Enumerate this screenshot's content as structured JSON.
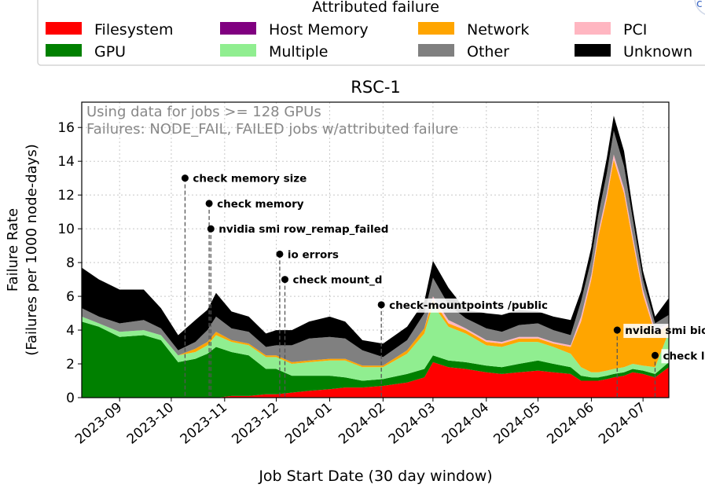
{
  "chart_data": {
    "type": "area",
    "title": "RSC-1",
    "xlabel": "Job Start Date (30 day window)",
    "ylabel_lines": [
      "Failure Rate",
      "(Failures per 1000 node-days)"
    ],
    "legend_title": "Attributed failure",
    "note_lines": [
      "Using data for jobs >= 128 GPUs",
      "Failures: NODE_FAIL, FAILED jobs w/attributed failure"
    ],
    "ylim": [
      0,
      17.5
    ],
    "xlim": [
      "2023-08-10",
      "2024-07-16"
    ],
    "y_ticks": [
      0,
      2,
      4,
      6,
      8,
      10,
      12,
      14,
      16
    ],
    "x_ticks": [
      {
        "date": "2023-09-01",
        "label": "2023-09"
      },
      {
        "date": "2023-10-01",
        "label": "2023-10"
      },
      {
        "date": "2023-11-01",
        "label": "2023-11"
      },
      {
        "date": "2023-12-01",
        "label": "2023-12"
      },
      {
        "date": "2024-01-01",
        "label": "2024-01"
      },
      {
        "date": "2024-02-01",
        "label": "2024-02"
      },
      {
        "date": "2024-03-01",
        "label": "2024-03"
      },
      {
        "date": "2024-04-01",
        "label": "2024-04"
      },
      {
        "date": "2024-05-01",
        "label": "2024-05"
      },
      {
        "date": "2024-06-01",
        "label": "2024-06"
      },
      {
        "date": "2024-07-01",
        "label": "2024-07"
      }
    ],
    "grid": true,
    "legend_placement": "top",
    "stacked": true,
    "x": [
      "2023-08-10",
      "2023-08-20",
      "2023-09-01",
      "2023-09-15",
      "2023-09-25",
      "2023-10-05",
      "2023-10-15",
      "2023-10-22",
      "2023-10-27",
      "2023-11-05",
      "2023-11-15",
      "2023-11-25",
      "2023-12-01",
      "2023-12-10",
      "2023-12-20",
      "2024-01-01",
      "2024-01-10",
      "2024-01-20",
      "2024-02-01",
      "2024-02-15",
      "2024-02-25",
      "2024-03-01",
      "2024-03-10",
      "2024-03-20",
      "2024-04-01",
      "2024-04-10",
      "2024-04-20",
      "2024-05-01",
      "2024-05-10",
      "2024-05-20",
      "2024-05-26",
      "2024-06-01",
      "2024-06-05",
      "2024-06-10",
      "2024-06-14",
      "2024-06-20",
      "2024-06-25",
      "2024-07-01",
      "2024-07-08",
      "2024-07-16"
    ],
    "series": [
      {
        "name": "Filesystem",
        "color": "#ff0000",
        "values": [
          0,
          0,
          0,
          0,
          0,
          0,
          0,
          0,
          0,
          0.1,
          0.1,
          0.2,
          0.2,
          0.3,
          0.4,
          0.5,
          0.6,
          0.6,
          0.7,
          0.9,
          1.2,
          2.1,
          1.8,
          1.7,
          1.5,
          1.4,
          1.5,
          1.6,
          1.5,
          1.4,
          1.0,
          1.0,
          1.0,
          1.1,
          1.2,
          1.3,
          1.5,
          1.4,
          1.2,
          1.8
        ]
      },
      {
        "name": "GPU",
        "color": "#008000",
        "values": [
          4.5,
          4.2,
          3.6,
          3.7,
          3.4,
          2.1,
          2.3,
          2.6,
          3.0,
          2.6,
          2.4,
          1.5,
          1.5,
          1.0,
          0.9,
          0.8,
          0.6,
          0.4,
          0.4,
          0.5,
          0.5,
          0.4,
          0.4,
          0.4,
          0.4,
          0.4,
          0.5,
          0.6,
          0.5,
          0.4,
          0.3,
          0.2,
          0.2,
          0.2,
          0.2,
          0.2,
          0.2,
          0.2,
          0.2,
          0.3
        ]
      },
      {
        "name": "Host Memory",
        "color": "#800080",
        "values": [
          0,
          0,
          0,
          0,
          0,
          0,
          0,
          0,
          0,
          0,
          0,
          0,
          0,
          0,
          0,
          0,
          0,
          0,
          0,
          0,
          0,
          0,
          0,
          0,
          0,
          0,
          0,
          0,
          0,
          0,
          0,
          0,
          0,
          0,
          0,
          0,
          0,
          0,
          0,
          0
        ]
      },
      {
        "name": "Multiple",
        "color": "#90ee90",
        "values": [
          0.3,
          0.2,
          0.3,
          0.3,
          0.3,
          0.4,
          0.4,
          0.5,
          0.7,
          0.6,
          0.6,
          0.7,
          0.7,
          0.7,
          0.8,
          0.9,
          1.0,
          0.8,
          0.7,
          1.2,
          2.1,
          3.0,
          2.0,
          1.7,
          1.2,
          1.2,
          1.3,
          1.1,
          1.0,
          0.8,
          0.5,
          0.3,
          0.3,
          0.3,
          0.3,
          0.3,
          0.3,
          0.3,
          0.4,
          1.8
        ]
      },
      {
        "name": "Network",
        "color": "#ffa500",
        "values": [
          0,
          0,
          0,
          0,
          0,
          0,
          0.2,
          0.2,
          0.2,
          0.1,
          0.1,
          0.1,
          0.1,
          0.1,
          0.1,
          0.1,
          0.1,
          0.1,
          0.1,
          0.2,
          0.3,
          0.3,
          0.2,
          0.2,
          0.2,
          0.2,
          0.2,
          0.2,
          0.2,
          0.4,
          2.7,
          5.5,
          8.0,
          10.2,
          12.4,
          10.3,
          7.3,
          4.2,
          2.0,
          0.4
        ]
      },
      {
        "name": "PCI",
        "color": "#ffb6c1",
        "values": [
          0,
          0,
          0,
          0,
          0,
          0,
          0,
          0,
          0,
          0,
          0,
          0,
          0,
          0,
          0,
          0,
          0,
          0,
          0,
          0,
          0,
          0.2,
          0.2,
          0.1,
          0.1,
          0.1,
          0.1,
          0.1,
          0.1,
          0.1,
          0.3,
          0.3,
          0.3,
          0.3,
          0.3,
          0.3,
          0.3,
          0.3,
          0.2,
          0.1
        ]
      },
      {
        "name": "Other",
        "color": "#808080",
        "values": [
          0.5,
          0.4,
          0.5,
          0.6,
          0.4,
          0.3,
          0.4,
          0.7,
          0.9,
          0.7,
          0.7,
          0.5,
          0.6,
          1.0,
          1.3,
          1.3,
          1.2,
          0.9,
          0.5,
          0.6,
          0.9,
          1.1,
          0.9,
          0.6,
          0.7,
          0.6,
          0.7,
          0.8,
          0.7,
          0.6,
          0.9,
          0.9,
          1.0,
          1.2,
          1.4,
          1.3,
          1.0,
          0.6,
          0.4,
          0.5
        ]
      },
      {
        "name": "Unknown",
        "color": "#000000",
        "values": [
          2.4,
          2.2,
          2.0,
          1.8,
          1.2,
          0.9,
          1.3,
          1.2,
          1.4,
          1.0,
          0.9,
          0.8,
          0.9,
          0.9,
          1.0,
          1.2,
          1.0,
          0.6,
          0.8,
          0.8,
          0.7,
          1.0,
          1.0,
          0.5,
          0.9,
          1.0,
          0.9,
          0.7,
          0.8,
          0.9,
          0.6,
          0.7,
          0.8,
          0.9,
          0.9,
          0.9,
          0.6,
          0.5,
          0.4,
          1.0
        ]
      }
    ],
    "annotations": [
      {
        "label": "check memory size",
        "date": "2023-10-09",
        "y": 13.0
      },
      {
        "label": "check memory",
        "date": "2023-10-23",
        "y": 11.5
      },
      {
        "label": "nvidia smi row_remap_failed",
        "date": "2023-10-24",
        "y": 10.0
      },
      {
        "label": "io errors",
        "date": "2023-12-03",
        "y": 8.5
      },
      {
        "label": "check mount_d",
        "date": "2023-12-06",
        "y": 7.0
      },
      {
        "label": "check-mountpoints /public",
        "date": "2024-01-31",
        "y": 5.5
      },
      {
        "label": "nvidia smi bios version mismatch",
        "date": "2024-06-16",
        "y": 4.0
      },
      {
        "label": "check ldap",
        "date": "2024-07-08",
        "y": 2.5
      }
    ]
  },
  "legend": {
    "items": [
      {
        "name": "Filesystem",
        "color": "#ff0000"
      },
      {
        "name": "Host Memory",
        "color": "#800080"
      },
      {
        "name": "Network",
        "color": "#ffa500"
      },
      {
        "name": "PCI",
        "color": "#ffb6c1"
      },
      {
        "name": "GPU",
        "color": "#008000"
      },
      {
        "name": "Multiple",
        "color": "#90ee90"
      },
      {
        "name": "Other",
        "color": "#808080"
      },
      {
        "name": "Unknown",
        "color": "#000000"
      }
    ]
  }
}
